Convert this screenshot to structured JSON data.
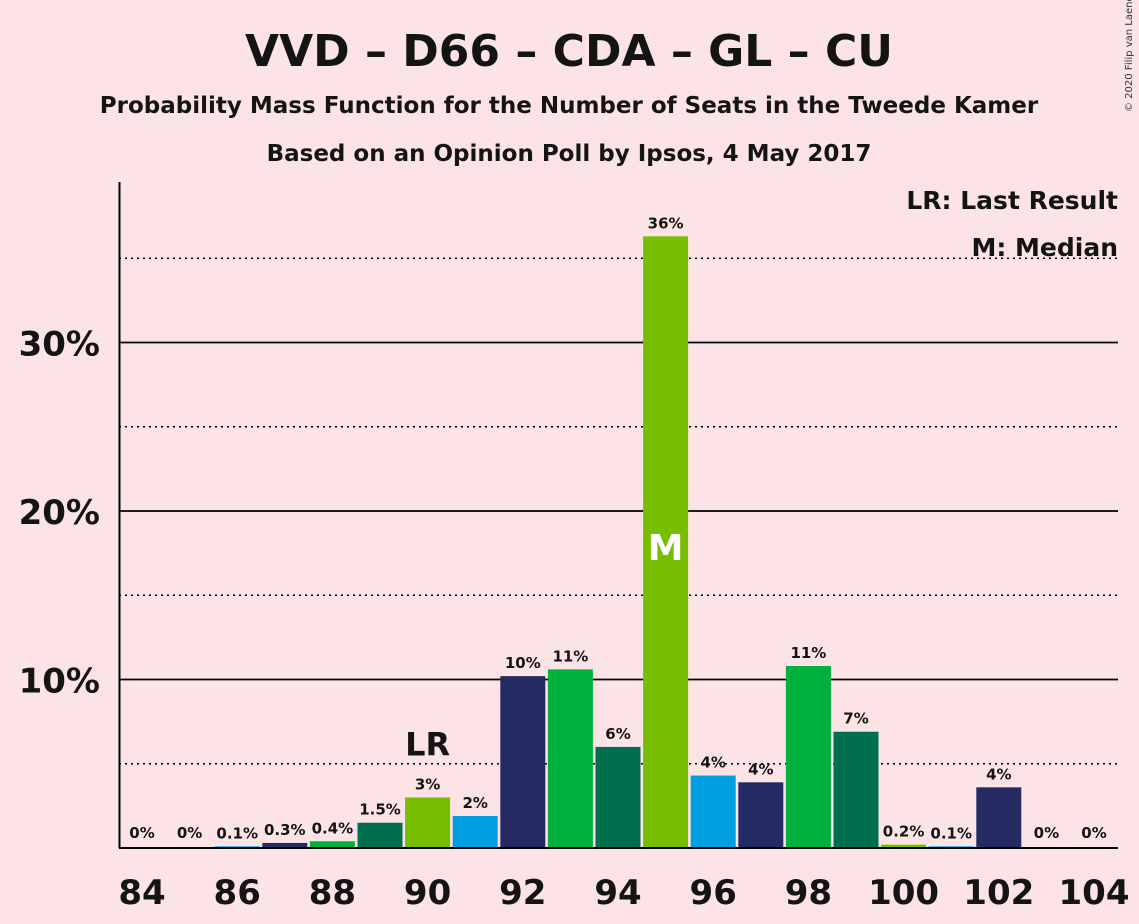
{
  "chart_data": {
    "type": "bar",
    "title": "VVD – D66 – CDA – GL – CU",
    "subtitle": "Probability Mass Function for the Number of Seats in the Tweede Kamer",
    "subtitle2": "Based on an Opinion Poll by Ipsos, 4 May 2017",
    "copyright": "© 2020 Filip van Laenen",
    "legend": {
      "placement": "top-right",
      "items": [
        "LR: Last Result",
        "M: Median"
      ]
    },
    "x": [
      84,
      85,
      86,
      87,
      88,
      89,
      90,
      91,
      92,
      93,
      94,
      95,
      96,
      97,
      98,
      99,
      100,
      101,
      102,
      103,
      104
    ],
    "values": [
      0,
      0,
      0.1,
      0.3,
      0.4,
      1.5,
      3.0,
      1.9,
      10.2,
      10.6,
      6.0,
      36.3,
      4.3,
      3.9,
      10.8,
      6.9,
      0.2,
      0.1,
      3.6,
      0,
      0
    ],
    "labels": [
      "0%",
      "0%",
      "0.1%",
      "0.3%",
      "0.4%",
      "1.5%",
      "3%",
      "2%",
      "10%",
      "11%",
      "6%",
      "36%",
      "4%",
      "4%",
      "11%",
      "7%",
      "0.2%",
      "0.1%",
      "4%",
      "0%",
      "0%"
    ],
    "colors": [
      "#00b13d",
      "#77bd00",
      "#009ee0",
      "#262a62",
      "#00b13d",
      "#006f4f",
      "#77bd00",
      "#009ee0",
      "#262a62",
      "#00b13d",
      "#006f4f",
      "#77bd00",
      "#009ee0",
      "#262a62",
      "#00b13d",
      "#006f4f",
      "#77bd00",
      "#009ee0",
      "#262a62",
      "#00b13d",
      "#006f4f"
    ],
    "x_tick_labels": [
      "84",
      "86",
      "88",
      "90",
      "92",
      "94",
      "96",
      "98",
      "100",
      "102",
      "104"
    ],
    "x_ticks": [
      84,
      86,
      88,
      90,
      92,
      94,
      96,
      98,
      100,
      102,
      104
    ],
    "y_tick_labels": [
      "10%",
      "20%",
      "30%"
    ],
    "y_ticks": [
      10,
      20,
      30
    ],
    "y_minor_ticks": [
      5,
      15,
      25,
      35
    ],
    "ylim": [
      0,
      39.5
    ],
    "last_result": {
      "x": 90,
      "label": "LR"
    },
    "median": {
      "x": 95,
      "label": "M"
    },
    "grid": true
  }
}
